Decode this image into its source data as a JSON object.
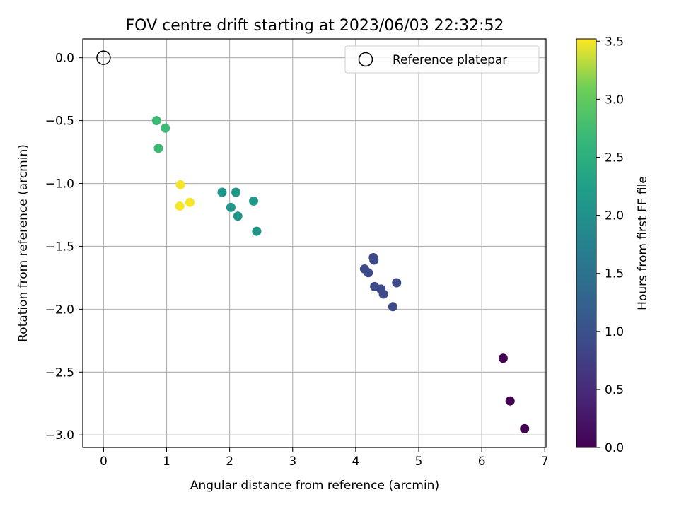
{
  "chart_data": {
    "type": "scatter",
    "title": "FOV centre drift starting at 2023/06/03 22:32:52",
    "xlabel": "Angular distance from reference (arcmin)",
    "ylabel": "Rotation from reference (arcmin)",
    "xlim": [
      -0.33,
      7.02
    ],
    "ylim": [
      -3.1,
      0.15
    ],
    "xticks": [
      0,
      1,
      2,
      3,
      4,
      5,
      6,
      7
    ],
    "xtick_labels": [
      "0",
      "1",
      "2",
      "3",
      "4",
      "5",
      "6",
      "7"
    ],
    "yticks": [
      0.0,
      -0.5,
      -1.0,
      -1.5,
      -2.0,
      -2.5,
      -3.0
    ],
    "ytick_labels": [
      "0.0",
      "−0.5",
      "−1.0",
      "−1.5",
      "−2.0",
      "−2.5",
      "−3.0"
    ],
    "grid": true,
    "legend": {
      "position": "top-right",
      "entries": [
        {
          "label": "Reference platepar",
          "marker": "open-circle"
        }
      ]
    },
    "reference_point": {
      "x": 0.0,
      "y": 0.0
    },
    "colorbar": {
      "label": "Hours from first FF file",
      "colormap": "viridis",
      "range": [
        0.0,
        3.52
      ],
      "ticks": [
        0.0,
        0.5,
        1.0,
        1.5,
        2.0,
        2.5,
        3.0,
        3.5
      ],
      "tick_labels": [
        "0.0",
        "0.5",
        "1.0",
        "1.5",
        "2.0",
        "2.5",
        "3.0",
        "3.5"
      ]
    },
    "points": [
      {
        "x": 6.34,
        "y": -2.39,
        "hours": 0.0
      },
      {
        "x": 6.45,
        "y": -2.73,
        "hours": 0.0
      },
      {
        "x": 6.68,
        "y": -2.95,
        "hours": 0.0
      },
      {
        "x": 4.28,
        "y": -1.59,
        "hours": 0.9
      },
      {
        "x": 4.29,
        "y": -1.61,
        "hours": 0.9
      },
      {
        "x": 4.14,
        "y": -1.68,
        "hours": 0.9
      },
      {
        "x": 4.2,
        "y": -1.71,
        "hours": 0.9
      },
      {
        "x": 4.65,
        "y": -1.79,
        "hours": 0.9
      },
      {
        "x": 4.3,
        "y": -1.82,
        "hours": 0.9
      },
      {
        "x": 4.4,
        "y": -1.84,
        "hours": 0.9
      },
      {
        "x": 4.44,
        "y": -1.88,
        "hours": 0.9
      },
      {
        "x": 4.59,
        "y": -1.98,
        "hours": 0.9
      },
      {
        "x": 1.88,
        "y": -1.07,
        "hours": 2.1
      },
      {
        "x": 2.1,
        "y": -1.07,
        "hours": 2.1
      },
      {
        "x": 2.38,
        "y": -1.14,
        "hours": 2.1
      },
      {
        "x": 2.02,
        "y": -1.19,
        "hours": 2.1
      },
      {
        "x": 2.13,
        "y": -1.26,
        "hours": 2.1
      },
      {
        "x": 2.43,
        "y": -1.38,
        "hours": 2.1
      },
      {
        "x": 0.84,
        "y": -0.5,
        "hours": 2.7
      },
      {
        "x": 0.98,
        "y": -0.56,
        "hours": 2.7
      },
      {
        "x": 0.87,
        "y": -0.72,
        "hours": 2.7
      },
      {
        "x": 1.22,
        "y": -1.01,
        "hours": 3.5
      },
      {
        "x": 1.21,
        "y": -1.18,
        "hours": 3.5
      },
      {
        "x": 1.37,
        "y": -1.15,
        "hours": 3.5
      }
    ]
  }
}
